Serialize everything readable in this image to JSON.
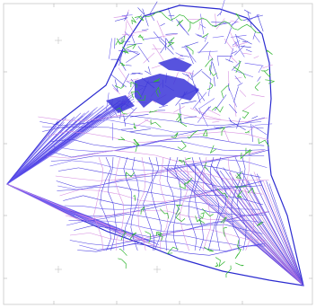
{
  "viewport": {
    "background": "#ffffff",
    "frame_color": "#c8c8c8",
    "tick_color": "#b0b0b0"
  },
  "drawing": {
    "boundary_color": "#2b2bd0",
    "contour_colors": [
      "#4a3ee0",
      "#6a5cf0",
      "#d58be0",
      "#3a35d8"
    ],
    "dense_fill_color": "#3a35d8",
    "feature_line_color": "#2fb52f"
  }
}
